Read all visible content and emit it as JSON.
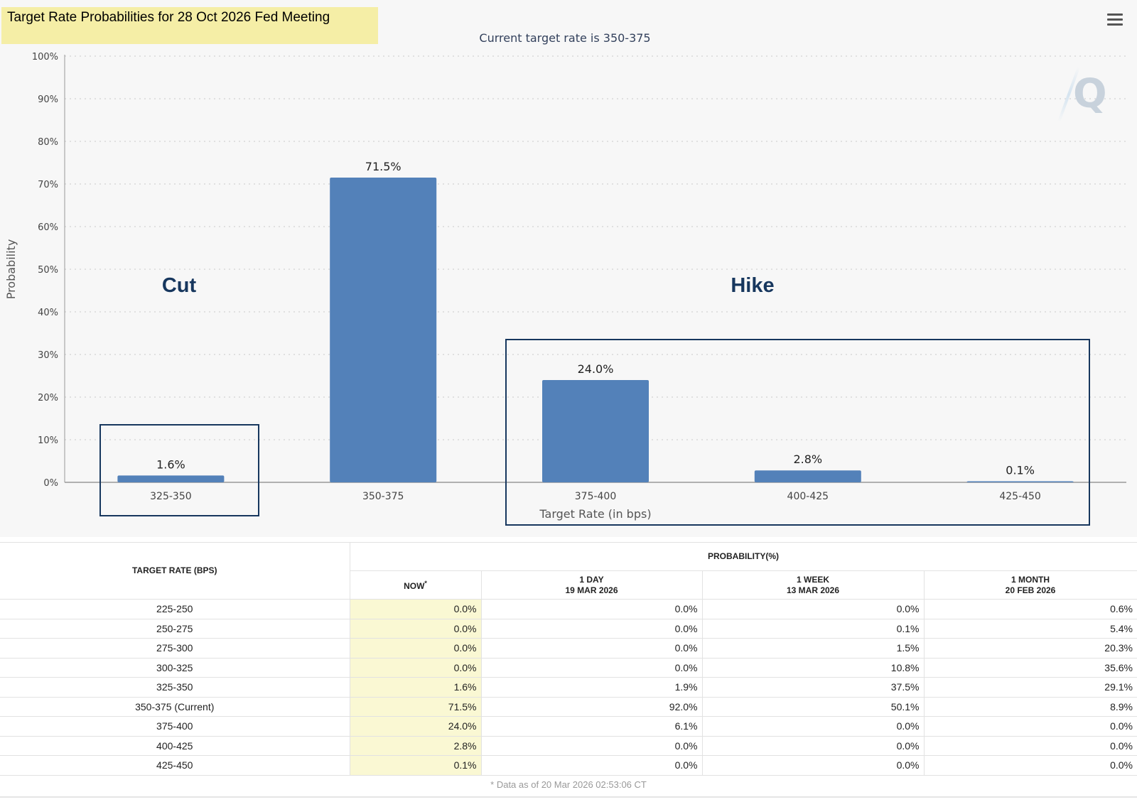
{
  "title": "Target Rate Probabilities for 28 Oct 2026 Fed Meeting",
  "subtitle": "Current target rate is 350-375",
  "menu_icon": "hamburger-menu-icon",
  "watermark": "Q",
  "colors": {
    "bar": "#5381b9",
    "box": "#17375e",
    "highlight": "#f5eea6",
    "now_column": "#faf8d3"
  },
  "chart_data": {
    "type": "bar",
    "title": "Target Rate Probabilities for 28 Oct 2026 Fed Meeting",
    "subtitle": "Current target rate is 350-375",
    "categories": [
      "325-350",
      "350-375",
      "375-400",
      "400-425",
      "425-450"
    ],
    "values": [
      1.6,
      71.5,
      24.0,
      2.8,
      0.1
    ],
    "data_labels": [
      "1.6%",
      "71.5%",
      "24.0%",
      "2.8%",
      "0.1%"
    ],
    "xlabel": "Target Rate (in bps)",
    "ylabel": "Probability",
    "ylim": [
      0,
      100
    ],
    "yticks": [
      "0%",
      "10%",
      "20%",
      "30%",
      "40%",
      "50%",
      "60%",
      "70%",
      "80%",
      "90%",
      "100%"
    ],
    "grid": true,
    "annotations": {
      "cut": "Cut",
      "hike": "Hike"
    }
  },
  "table": {
    "header_rate": "TARGET RATE (BPS)",
    "header_prob": "PROBABILITY(%)",
    "col_now": "NOW",
    "col_now_mark": "*",
    "col_day": "1 DAY",
    "col_day_date": "19 MAR 2026",
    "col_week": "1 WEEK",
    "col_week_date": "13 MAR 2026",
    "col_month": "1 MONTH",
    "col_month_date": "20 FEB 2026",
    "rows": [
      {
        "rate": "225-250",
        "now": "0.0%",
        "day": "0.0%",
        "week": "0.0%",
        "month": "0.6%"
      },
      {
        "rate": "250-275",
        "now": "0.0%",
        "day": "0.0%",
        "week": "0.1%",
        "month": "5.4%"
      },
      {
        "rate": "275-300",
        "now": "0.0%",
        "day": "0.0%",
        "week": "1.5%",
        "month": "20.3%"
      },
      {
        "rate": "300-325",
        "now": "0.0%",
        "day": "0.0%",
        "week": "10.8%",
        "month": "35.6%"
      },
      {
        "rate": "325-350",
        "now": "1.6%",
        "day": "1.9%",
        "week": "37.5%",
        "month": "29.1%"
      },
      {
        "rate": "350-375 (Current)",
        "now": "71.5%",
        "day": "92.0%",
        "week": "50.1%",
        "month": "8.9%"
      },
      {
        "rate": "375-400",
        "now": "24.0%",
        "day": "6.1%",
        "week": "0.0%",
        "month": "0.0%"
      },
      {
        "rate": "400-425",
        "now": "2.8%",
        "day": "0.0%",
        "week": "0.0%",
        "month": "0.0%"
      },
      {
        "rate": "425-450",
        "now": "0.1%",
        "day": "0.0%",
        "week": "0.0%",
        "month": "0.0%"
      }
    ],
    "footnote": "* Data as of 20 Mar 2026 02:53:06 CT"
  }
}
